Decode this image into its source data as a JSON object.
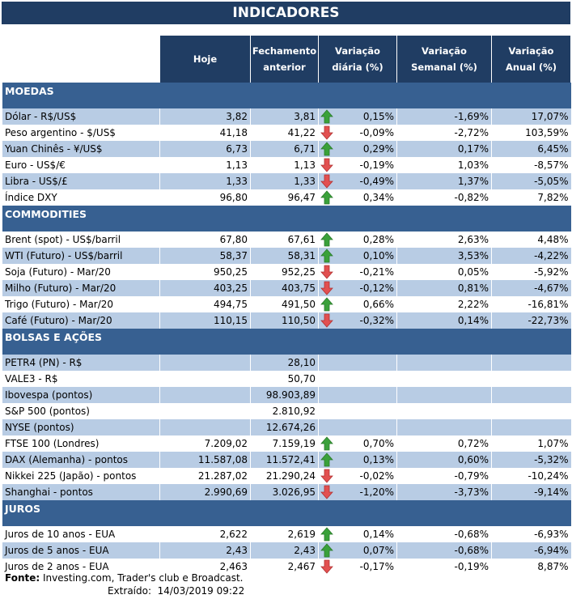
{
  "title": "INDICADORES",
  "headers": [
    "Hoje",
    "Fechamento anterior",
    "Variação diária (%)",
    "Variação Semanal (%)",
    "Variação Anual (%)"
  ],
  "colors": {
    "title": "#203d63",
    "section": "#376091",
    "shade": "#b8cce4",
    "up": "#3aa13a",
    "down": "#e25050"
  },
  "sections": [
    {
      "name": "MOEDAS",
      "rows": [
        {
          "label": "Dólar - R$/US$",
          "hoje": "3,82",
          "fech": "3,81",
          "dir": "up",
          "dia": "0,15%",
          "sem": "-1,69%",
          "ano": "17,07%",
          "shaded": true
        },
        {
          "label": "Peso argentino - $/US$",
          "hoje": "41,18",
          "fech": "41,22",
          "dir": "down",
          "dia": "-0,09%",
          "sem": "-2,72%",
          "ano": "103,59%",
          "shaded": false
        },
        {
          "label": "Yuan Chinês - ¥/US$",
          "hoje": "6,73",
          "fech": "6,71",
          "dir": "up",
          "dia": "0,29%",
          "sem": "0,17%",
          "ano": "6,45%",
          "shaded": true
        },
        {
          "label": "Euro - US$/€",
          "hoje": "1,13",
          "fech": "1,13",
          "dir": "down",
          "dia": "-0,19%",
          "sem": "1,03%",
          "ano": "-8,57%",
          "shaded": false
        },
        {
          "label": "Libra - US$/£",
          "hoje": "1,33",
          "fech": "1,33",
          "dir": "down",
          "dia": "-0,49%",
          "sem": "1,37%",
          "ano": "-5,05%",
          "shaded": true
        },
        {
          "label": "Índice DXY",
          "hoje": "96,80",
          "fech": "96,47",
          "dir": "up",
          "dia": "0,34%",
          "sem": "-0,82%",
          "ano": "7,82%",
          "shaded": false
        }
      ]
    },
    {
      "name": "COMMODITIES",
      "rows": [
        {
          "label": "Brent (spot) - US$/barril",
          "hoje": "67,80",
          "fech": "67,61",
          "dir": "up",
          "dia": "0,28%",
          "sem": "2,63%",
          "ano": "4,48%",
          "shaded": false
        },
        {
          "label": "WTI (Futuro) - US$/barril",
          "hoje": "58,37",
          "fech": "58,31",
          "dir": "up",
          "dia": "0,10%",
          "sem": "3,53%",
          "ano": "-4,22%",
          "shaded": true
        },
        {
          "label": "Soja (Futuro) - Mar/20",
          "hoje": "950,25",
          "fech": "952,25",
          "dir": "down",
          "dia": "-0,21%",
          "sem": "0,05%",
          "ano": "-5,92%",
          "shaded": false
        },
        {
          "label": "Milho (Futuro) - Mar/20",
          "hoje": "403,25",
          "fech": "403,75",
          "dir": "down",
          "dia": "-0,12%",
          "sem": "0,81%",
          "ano": "-4,67%",
          "shaded": true
        },
        {
          "label": "Trigo (Futuro) - Mar/20",
          "hoje": "494,75",
          "fech": "491,50",
          "dir": "up",
          "dia": "0,66%",
          "sem": "2,22%",
          "ano": "-16,81%",
          "shaded": false
        },
        {
          "label": "Café (Futuro) - Mar/20",
          "hoje": "110,15",
          "fech": "110,50",
          "dir": "down",
          "dia": "-0,32%",
          "sem": "0,14%",
          "ano": "-22,73%",
          "shaded": true
        }
      ]
    },
    {
      "name": "BOLSAS E AÇÕES",
      "rows": [
        {
          "label": "PETR4 (PN) - R$",
          "hoje": "",
          "fech": "28,10",
          "dir": "",
          "dia": "",
          "sem": "",
          "ano": "",
          "shaded": true
        },
        {
          "label": "VALE3 - R$",
          "hoje": "",
          "fech": "50,70",
          "dir": "",
          "dia": "",
          "sem": "",
          "ano": "",
          "shaded": false
        },
        {
          "label": "Ibovespa (pontos)",
          "hoje": "",
          "fech": "98.903,89",
          "dir": "",
          "dia": "",
          "sem": "",
          "ano": "",
          "shaded": true
        },
        {
          "label": "S&P 500 (pontos)",
          "hoje": "",
          "fech": "2.810,92",
          "dir": "",
          "dia": "",
          "sem": "",
          "ano": "",
          "shaded": false
        },
        {
          "label": "NYSE (pontos)",
          "hoje": "",
          "fech": "12.674,26",
          "dir": "",
          "dia": "",
          "sem": "",
          "ano": "",
          "shaded": true
        },
        {
          "label": "FTSE 100 (Londres)",
          "hoje": "7.209,02",
          "fech": "7.159,19",
          "dir": "up",
          "dia": "0,70%",
          "sem": "0,72%",
          "ano": "1,07%",
          "shaded": false
        },
        {
          "label": "DAX (Alemanha) - pontos",
          "hoje": "11.587,08",
          "fech": "11.572,41",
          "dir": "up",
          "dia": "0,13%",
          "sem": "0,60%",
          "ano": "-5,32%",
          "shaded": true
        },
        {
          "label": "Nikkei 225 (Japão) - pontos",
          "hoje": "21.287,02",
          "fech": "21.290,24",
          "dir": "down",
          "dia": "-0,02%",
          "sem": "-0,79%",
          "ano": "-10,24%",
          "shaded": false
        },
        {
          "label": "Shanghai - pontos",
          "hoje": "2.990,69",
          "fech": "3.026,95",
          "dir": "down",
          "dia": "-1,20%",
          "sem": "-3,73%",
          "ano": "-9,14%",
          "shaded": true
        }
      ]
    },
    {
      "name": "JUROS",
      "rows": [
        {
          "label": "Juros de 10 anos - EUA",
          "hoje": "2,622",
          "fech": "2,619",
          "dir": "up",
          "dia": "0,14%",
          "sem": "-0,68%",
          "ano": "-6,93%",
          "shaded": false
        },
        {
          "label": "Juros de 5 anos - EUA",
          "hoje": "2,43",
          "fech": "2,43",
          "dir": "up",
          "dia": "0,07%",
          "sem": "-0,68%",
          "ano": "-6,94%",
          "shaded": true
        },
        {
          "label": "Juros de 2 anos - EUA",
          "hoje": "2,463",
          "fech": "2,467",
          "dir": "down",
          "dia": "-0,17%",
          "sem": "-0,19%",
          "ano": "8,87%",
          "shaded": false
        }
      ]
    }
  ],
  "footer": {
    "source_label": "Fonte:",
    "source_text": "Investing.com, Trader's club e Broadcast.",
    "extracted_label": "Extraído:",
    "extracted_value": "14/03/2019 09:22"
  }
}
